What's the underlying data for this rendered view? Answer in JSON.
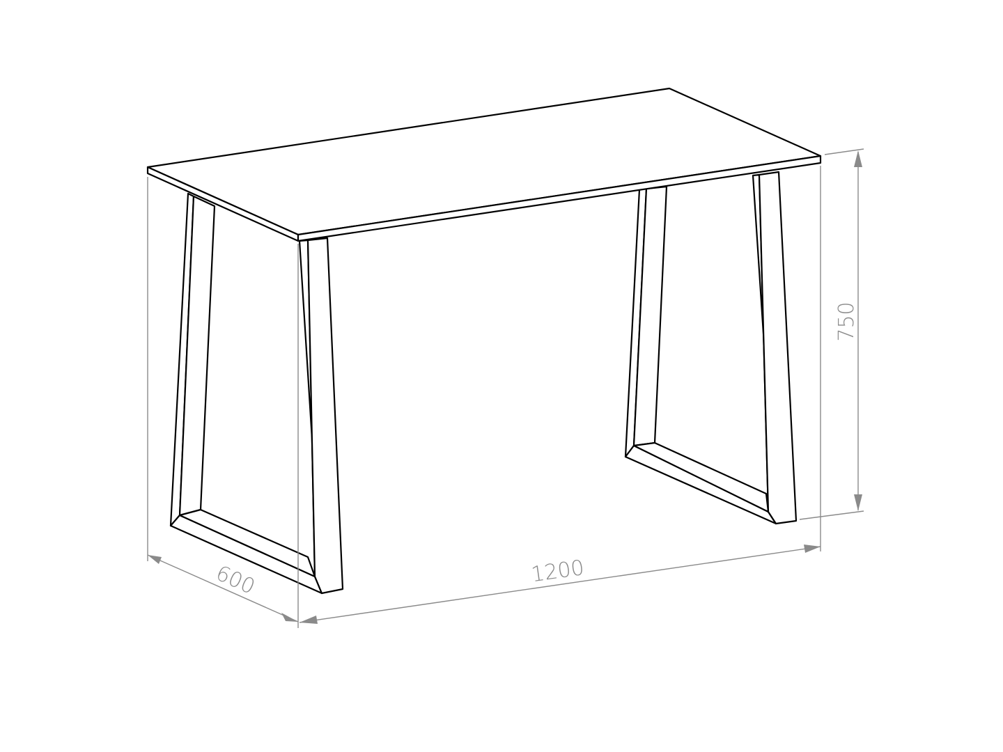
{
  "drawing": {
    "subject": "table",
    "dimensions": {
      "length": "1200",
      "depth": "600",
      "height": "750"
    },
    "colors": {
      "line": "#000000",
      "dimension": "#8a8a8a",
      "background": "#ffffff"
    }
  }
}
